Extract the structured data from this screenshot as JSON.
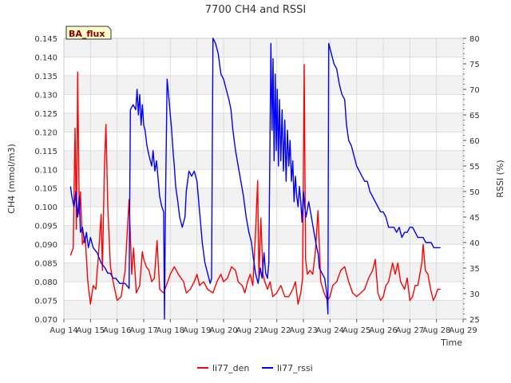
{
  "chart_data": {
    "type": "line",
    "title": "7700 CH4 and RSSI",
    "badge": "BA_flux",
    "xlabel": "Time",
    "ylabel": "CH4 (mmol/m3)",
    "y2label": "RSSI (%)",
    "xlim": [
      14,
      29
    ],
    "ylim": [
      0.07,
      0.145
    ],
    "y2lim": [
      25,
      80
    ],
    "x_ticks": [
      14,
      15,
      16,
      17,
      18,
      19,
      20,
      21,
      22,
      23,
      24,
      25,
      26,
      27,
      28,
      29
    ],
    "x_tick_labels": [
      "Aug 14",
      "Aug 15",
      "Aug 16",
      "Aug 17",
      "Aug 18",
      "Aug 19",
      "Aug 20",
      "Aug 21",
      "Aug 22",
      "Aug 23",
      "Aug 24",
      "Aug 25",
      "Aug 26",
      "Aug 27",
      "Aug 28",
      "Aug 29"
    ],
    "y_ticks": [
      0.07,
      0.075,
      0.08,
      0.085,
      0.09,
      0.095,
      0.1,
      0.105,
      0.11,
      0.115,
      0.12,
      0.125,
      0.13,
      0.135,
      0.14,
      0.145
    ],
    "y_tick_labels": [
      "0.070",
      "0.075",
      "0.080",
      "0.085",
      "0.090",
      "0.095",
      "0.100",
      "0.105",
      "0.110",
      "0.115",
      "0.120",
      "0.125",
      "0.130",
      "0.135",
      "0.140",
      "0.145"
    ],
    "y2_ticks": [
      25,
      30,
      35,
      40,
      45,
      50,
      55,
      60,
      65,
      70,
      75,
      80
    ],
    "y2_tick_labels": [
      "25",
      "30",
      "35",
      "40",
      "45",
      "50",
      "55",
      "60",
      "65",
      "70",
      "75",
      "80"
    ],
    "legend_position": "bottom-center",
    "series": [
      {
        "name": "li77_den",
        "axis": "left",
        "color": "#ff0000",
        "points": [
          [
            14.25,
            0.087
          ],
          [
            14.35,
            0.089
          ],
          [
            14.42,
            0.121
          ],
          [
            14.47,
            0.094
          ],
          [
            14.52,
            0.136
          ],
          [
            14.58,
            0.098
          ],
          [
            14.62,
            0.104
          ],
          [
            14.7,
            0.09
          ],
          [
            14.8,
            0.092
          ],
          [
            14.9,
            0.08
          ],
          [
            15.0,
            0.074
          ],
          [
            15.1,
            0.079
          ],
          [
            15.2,
            0.078
          ],
          [
            15.3,
            0.087
          ],
          [
            15.4,
            0.098
          ],
          [
            15.45,
            0.083
          ],
          [
            15.52,
            0.11
          ],
          [
            15.58,
            0.122
          ],
          [
            15.65,
            0.1
          ],
          [
            15.75,
            0.084
          ],
          [
            15.85,
            0.08
          ],
          [
            16.0,
            0.075
          ],
          [
            16.15,
            0.076
          ],
          [
            16.3,
            0.083
          ],
          [
            16.38,
            0.093
          ],
          [
            16.45,
            0.102
          ],
          [
            16.55,
            0.082
          ],
          [
            16.62,
            0.089
          ],
          [
            16.72,
            0.077
          ],
          [
            16.85,
            0.079
          ],
          [
            16.95,
            0.088
          ],
          [
            17.0,
            0.086
          ],
          [
            17.1,
            0.084
          ],
          [
            17.2,
            0.083
          ],
          [
            17.3,
            0.08
          ],
          [
            17.4,
            0.081
          ],
          [
            17.5,
            0.091
          ],
          [
            17.6,
            0.078
          ],
          [
            17.75,
            0.077
          ],
          [
            17.9,
            0.08
          ],
          [
            18.0,
            0.082
          ],
          [
            18.15,
            0.084
          ],
          [
            18.3,
            0.082
          ],
          [
            18.5,
            0.08
          ],
          [
            18.6,
            0.077
          ],
          [
            18.75,
            0.078
          ],
          [
            18.9,
            0.08
          ],
          [
            19.0,
            0.082
          ],
          [
            19.1,
            0.079
          ],
          [
            19.25,
            0.08
          ],
          [
            19.4,
            0.078
          ],
          [
            19.6,
            0.077
          ],
          [
            19.75,
            0.08
          ],
          [
            19.9,
            0.082
          ],
          [
            20.0,
            0.08
          ],
          [
            20.15,
            0.081
          ],
          [
            20.3,
            0.084
          ],
          [
            20.45,
            0.083
          ],
          [
            20.55,
            0.08
          ],
          [
            20.7,
            0.079
          ],
          [
            20.8,
            0.077
          ],
          [
            20.9,
            0.08
          ],
          [
            21.0,
            0.082
          ],
          [
            21.1,
            0.079
          ],
          [
            21.2,
            0.093
          ],
          [
            21.28,
            0.107
          ],
          [
            21.33,
            0.081
          ],
          [
            21.4,
            0.097
          ],
          [
            21.48,
            0.082
          ],
          [
            21.55,
            0.08
          ],
          [
            21.65,
            0.078
          ],
          [
            21.75,
            0.08
          ],
          [
            21.85,
            0.076
          ],
          [
            22.0,
            0.077
          ],
          [
            22.15,
            0.079
          ],
          [
            22.3,
            0.076
          ],
          [
            22.45,
            0.076
          ],
          [
            22.6,
            0.078
          ],
          [
            22.7,
            0.08
          ],
          [
            22.8,
            0.074
          ],
          [
            22.9,
            0.077
          ],
          [
            22.97,
            0.081
          ],
          [
            23.03,
            0.138
          ],
          [
            23.08,
            0.086
          ],
          [
            23.15,
            0.082
          ],
          [
            23.25,
            0.083
          ],
          [
            23.35,
            0.082
          ],
          [
            23.45,
            0.088
          ],
          [
            23.55,
            0.099
          ],
          [
            23.65,
            0.08
          ],
          [
            23.78,
            0.077
          ],
          [
            23.9,
            0.075
          ],
          [
            24.0,
            0.076
          ],
          [
            24.1,
            0.079
          ],
          [
            24.25,
            0.08
          ],
          [
            24.4,
            0.083
          ],
          [
            24.55,
            0.084
          ],
          [
            24.7,
            0.08
          ],
          [
            24.85,
            0.077
          ],
          [
            25.0,
            0.076
          ],
          [
            25.15,
            0.077
          ],
          [
            25.3,
            0.078
          ],
          [
            25.45,
            0.081
          ],
          [
            25.6,
            0.083
          ],
          [
            25.7,
            0.086
          ],
          [
            25.8,
            0.077
          ],
          [
            25.9,
            0.075
          ],
          [
            26.0,
            0.076
          ],
          [
            26.1,
            0.079
          ],
          [
            26.2,
            0.08
          ],
          [
            26.35,
            0.085
          ],
          [
            26.45,
            0.082
          ],
          [
            26.55,
            0.085
          ],
          [
            26.65,
            0.08
          ],
          [
            26.8,
            0.078
          ],
          [
            26.9,
            0.081
          ],
          [
            27.0,
            0.075
          ],
          [
            27.1,
            0.076
          ],
          [
            27.2,
            0.079
          ],
          [
            27.3,
            0.079
          ],
          [
            27.45,
            0.085
          ],
          [
            27.5,
            0.09
          ],
          [
            27.58,
            0.083
          ],
          [
            27.68,
            0.082
          ],
          [
            27.78,
            0.078
          ],
          [
            27.88,
            0.075
          ],
          [
            27.95,
            0.076
          ],
          [
            28.05,
            0.078
          ],
          [
            28.15,
            0.078
          ]
        ]
      },
      {
        "name": "li77_rssi",
        "axis": "right",
        "color": "#0000ff",
        "points": [
          [
            14.25,
            51
          ],
          [
            14.3,
            49
          ],
          [
            14.38,
            47
          ],
          [
            14.45,
            50
          ],
          [
            14.52,
            45
          ],
          [
            14.58,
            49
          ],
          [
            14.62,
            42
          ],
          [
            14.7,
            43
          ],
          [
            14.78,
            40
          ],
          [
            14.85,
            42
          ],
          [
            14.92,
            39
          ],
          [
            15.0,
            41
          ],
          [
            15.1,
            39
          ],
          [
            15.25,
            38
          ],
          [
            15.4,
            36
          ],
          [
            15.55,
            35
          ],
          [
            15.65,
            34
          ],
          [
            15.75,
            34
          ],
          [
            15.85,
            33
          ],
          [
            15.95,
            33
          ],
          [
            16.1,
            32
          ],
          [
            16.3,
            32
          ],
          [
            16.45,
            31
          ],
          [
            16.5,
            66
          ],
          [
            16.6,
            67
          ],
          [
            16.7,
            66
          ],
          [
            16.75,
            70
          ],
          [
            16.8,
            65
          ],
          [
            16.85,
            69
          ],
          [
            16.9,
            63
          ],
          [
            16.95,
            67
          ],
          [
            17.0,
            63
          ],
          [
            17.05,
            62
          ],
          [
            17.12,
            59
          ],
          [
            17.2,
            57
          ],
          [
            17.3,
            55
          ],
          [
            17.35,
            58
          ],
          [
            17.42,
            54
          ],
          [
            17.48,
            56
          ],
          [
            17.55,
            52
          ],
          [
            17.6,
            49
          ],
          [
            17.68,
            47
          ],
          [
            17.75,
            46
          ],
          [
            17.78,
            25
          ],
          [
            17.82,
            48
          ],
          [
            17.88,
            72
          ],
          [
            17.95,
            68
          ],
          [
            18.0,
            65
          ],
          [
            18.05,
            62
          ],
          [
            18.1,
            58
          ],
          [
            18.15,
            55
          ],
          [
            18.2,
            51
          ],
          [
            18.28,
            48
          ],
          [
            18.35,
            45
          ],
          [
            18.45,
            43
          ],
          [
            18.55,
            45
          ],
          [
            18.6,
            50
          ],
          [
            18.7,
            54
          ],
          [
            18.8,
            53
          ],
          [
            18.9,
            54
          ],
          [
            19.0,
            52
          ],
          [
            19.1,
            46
          ],
          [
            19.2,
            40
          ],
          [
            19.3,
            36
          ],
          [
            19.4,
            34
          ],
          [
            19.5,
            32
          ],
          [
            19.55,
            33
          ],
          [
            19.6,
            80
          ],
          [
            19.7,
            79
          ],
          [
            19.8,
            77
          ],
          [
            19.9,
            73
          ],
          [
            20.0,
            72
          ],
          [
            20.1,
            70
          ],
          [
            20.2,
            68
          ],
          [
            20.28,
            66
          ],
          [
            20.35,
            62
          ],
          [
            20.45,
            58
          ],
          [
            20.55,
            55
          ],
          [
            20.65,
            52
          ],
          [
            20.75,
            49
          ],
          [
            20.85,
            45
          ],
          [
            20.95,
            42
          ],
          [
            21.05,
            40
          ],
          [
            21.12,
            37
          ],
          [
            21.2,
            34
          ],
          [
            21.3,
            32
          ],
          [
            21.38,
            35
          ],
          [
            21.45,
            33
          ],
          [
            21.52,
            38
          ],
          [
            21.58,
            34
          ],
          [
            21.65,
            33
          ],
          [
            21.7,
            36
          ],
          [
            21.78,
            79
          ],
          [
            21.82,
            62
          ],
          [
            21.86,
            76
          ],
          [
            21.9,
            56
          ],
          [
            21.94,
            73
          ],
          [
            21.98,
            58
          ],
          [
            22.02,
            70
          ],
          [
            22.06,
            55
          ],
          [
            22.1,
            68
          ],
          [
            22.15,
            56
          ],
          [
            22.2,
            66
          ],
          [
            22.25,
            54
          ],
          [
            22.3,
            64
          ],
          [
            22.35,
            52
          ],
          [
            22.4,
            62
          ],
          [
            22.45,
            55
          ],
          [
            22.5,
            60
          ],
          [
            22.55,
            52
          ],
          [
            22.6,
            56
          ],
          [
            22.65,
            48
          ],
          [
            22.7,
            53
          ],
          [
            22.75,
            49
          ],
          [
            22.8,
            47
          ],
          [
            22.85,
            51
          ],
          [
            22.9,
            48
          ],
          [
            22.95,
            44
          ],
          [
            23.0,
            50
          ],
          [
            23.05,
            47
          ],
          [
            23.1,
            45
          ],
          [
            23.2,
            48
          ],
          [
            23.3,
            45
          ],
          [
            23.4,
            42
          ],
          [
            23.5,
            39
          ],
          [
            23.55,
            38
          ],
          [
            23.6,
            35
          ],
          [
            23.7,
            34
          ],
          [
            23.8,
            33
          ],
          [
            23.88,
            30
          ],
          [
            23.92,
            26
          ],
          [
            23.95,
            79
          ],
          [
            24.05,
            77
          ],
          [
            24.15,
            75
          ],
          [
            24.25,
            74
          ],
          [
            24.35,
            71
          ],
          [
            24.45,
            69
          ],
          [
            24.55,
            68
          ],
          [
            24.62,
            63
          ],
          [
            24.7,
            60
          ],
          [
            24.8,
            59
          ],
          [
            24.9,
            57
          ],
          [
            25.0,
            55
          ],
          [
            25.1,
            54
          ],
          [
            25.2,
            53
          ],
          [
            25.3,
            52
          ],
          [
            25.4,
            52
          ],
          [
            25.5,
            50
          ],
          [
            25.6,
            49
          ],
          [
            25.7,
            48
          ],
          [
            25.8,
            47
          ],
          [
            25.9,
            46
          ],
          [
            26.0,
            46
          ],
          [
            26.1,
            45
          ],
          [
            26.2,
            43
          ],
          [
            26.3,
            43
          ],
          [
            26.4,
            43
          ],
          [
            26.5,
            42
          ],
          [
            26.6,
            43
          ],
          [
            26.7,
            41
          ],
          [
            26.8,
            42
          ],
          [
            26.9,
            42
          ],
          [
            27.0,
            43
          ],
          [
            27.1,
            43
          ],
          [
            27.2,
            42
          ],
          [
            27.3,
            41
          ],
          [
            27.4,
            41
          ],
          [
            27.5,
            41
          ],
          [
            27.6,
            40
          ],
          [
            27.7,
            40
          ],
          [
            27.8,
            40
          ],
          [
            27.9,
            39
          ],
          [
            28.0,
            39
          ],
          [
            28.15,
            39
          ]
        ]
      }
    ]
  }
}
